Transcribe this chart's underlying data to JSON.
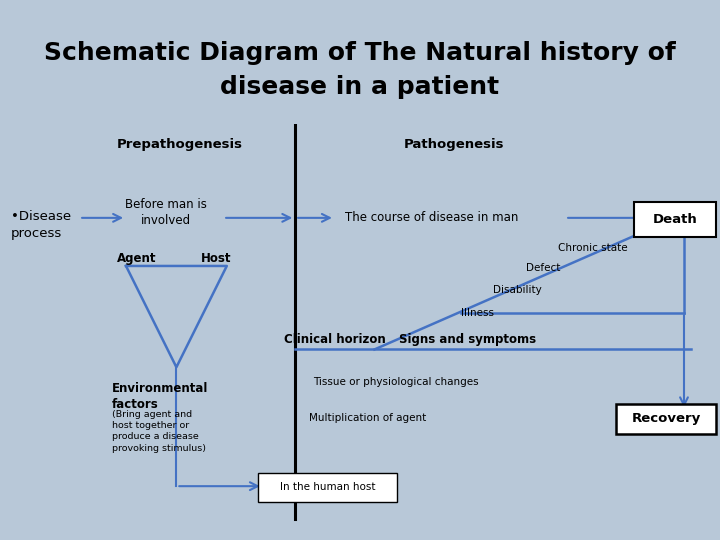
{
  "title_line1": "Schematic Diagram of The Natural history of",
  "title_line2": "disease in a patient",
  "title_bg": "#d4848a",
  "outer_bg": "#b8c8d8",
  "main_bg": "#d4c9a0",
  "arrow_color": "#4472c4",
  "line_color": "#4472c4",
  "text_color": "#000000",
  "title_fontsize": 18,
  "labels": {
    "prepathogenesis": "Prepathogenesis",
    "pathogenesis": "Pathogenesis",
    "disease_process": "•Disease\nprocess",
    "before_man": "Before man is\ninvolved",
    "agent": "Agent",
    "host": "Host",
    "env_factors": "Environmental\nfactors",
    "env_note": "(Bring agent and\nhost together or\nproduce a disease\nprovoking stimulus)",
    "course": "The course of disease in man",
    "death": "Death",
    "chronic": "Chronic state",
    "defect": "Defect",
    "disability": "Disability",
    "illness": "Illness",
    "clinical_horizon": "Clinical horizon",
    "signs": "Signs and symptoms",
    "tissue": "Tissue or physiological changes",
    "multiplication": "Multiplication of agent",
    "human_host": "In the human host",
    "recovery": "Recovery"
  }
}
